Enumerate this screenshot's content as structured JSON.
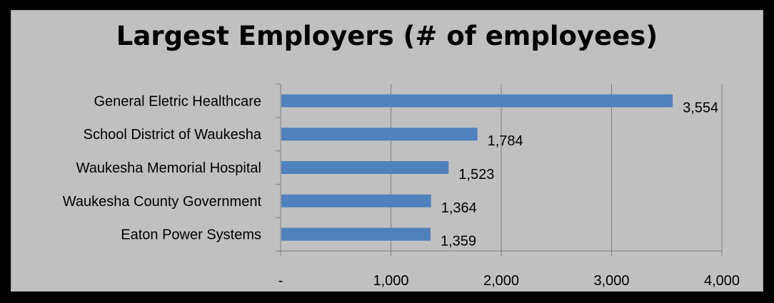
{
  "chart_data": {
    "type": "bar",
    "orientation": "horizontal",
    "title": "Largest Employers (# of employees)",
    "categories": [
      "General Eletric Healthcare",
      "School District of Waukesha",
      "Waukesha Memorial Hospital",
      "Waukesha County Government",
      "Eaton Power Systems"
    ],
    "values": [
      3554,
      1784,
      1523,
      1364,
      1359
    ],
    "data_labels": [
      "3,554",
      "1,784",
      "1,523",
      "1,364",
      "1,359"
    ],
    "xlim": [
      0,
      4000
    ],
    "x_ticks": [
      0,
      1000,
      2000,
      3000,
      4000
    ],
    "x_tick_labels": [
      "-",
      "1,000",
      "2,000",
      "3,000",
      "4,000"
    ],
    "grid": "vertical",
    "legend": "none",
    "colors": {
      "bar": "#4f81bd",
      "background": "#c0c0c0",
      "frame": "#000000",
      "gridline": "#7f7f7f"
    }
  }
}
